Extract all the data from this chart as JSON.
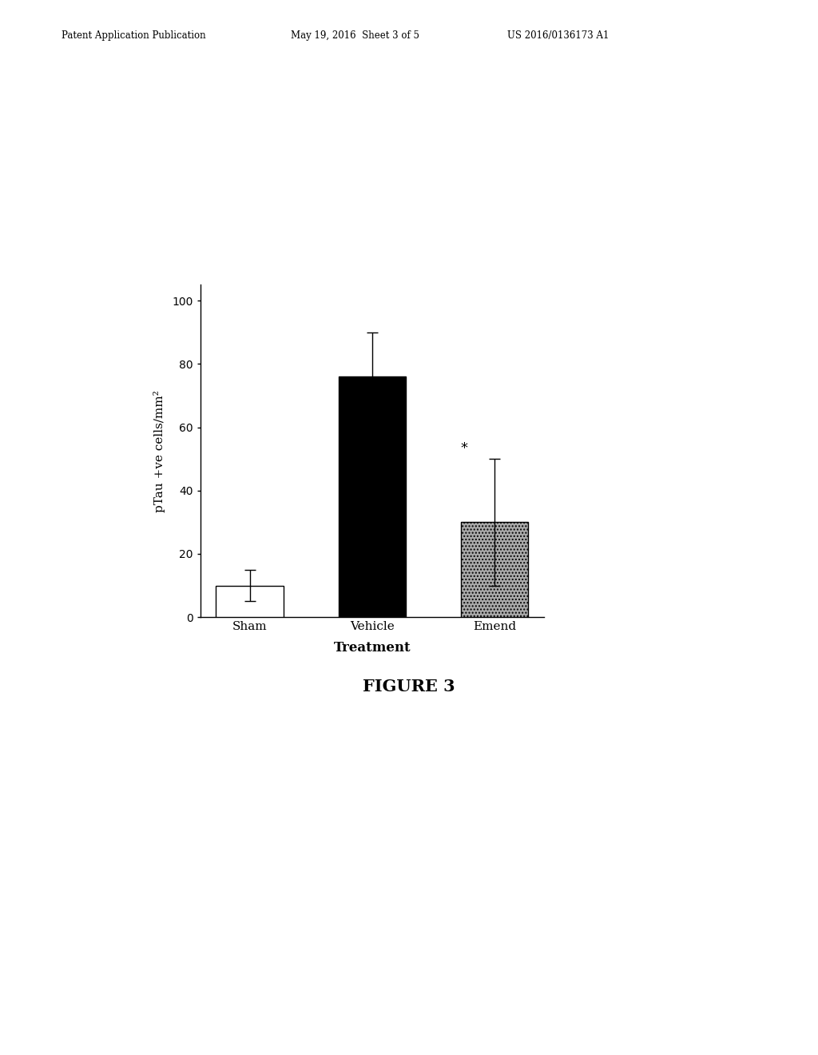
{
  "categories": [
    "Sham",
    "Vehicle",
    "Emend"
  ],
  "values": [
    10.0,
    76.0,
    30.0
  ],
  "errors": [
    5.0,
    14.0,
    20.0
  ],
  "bar_colors": [
    "white",
    "black",
    "#aaaaaa"
  ],
  "bar_hatches": [
    "",
    "",
    "...."
  ],
  "bar_edgecolors": [
    "black",
    "black",
    "black"
  ],
  "ylabel": "pTau +ve cells/mm²",
  "xlabel": "Treatment",
  "ylim": [
    0,
    105
  ],
  "yticks": [
    0,
    20,
    40,
    60,
    80,
    100
  ],
  "figure_caption": "FIGURE 3",
  "header_left": "Patent Application Publication",
  "header_mid": "May 19, 2016  Sheet 3 of 5",
  "header_right": "US 2016/0136173 A1",
  "asterisk_bar": 2,
  "asterisk_text": "*",
  "background_color": "#ffffff",
  "bar_width": 0.55
}
